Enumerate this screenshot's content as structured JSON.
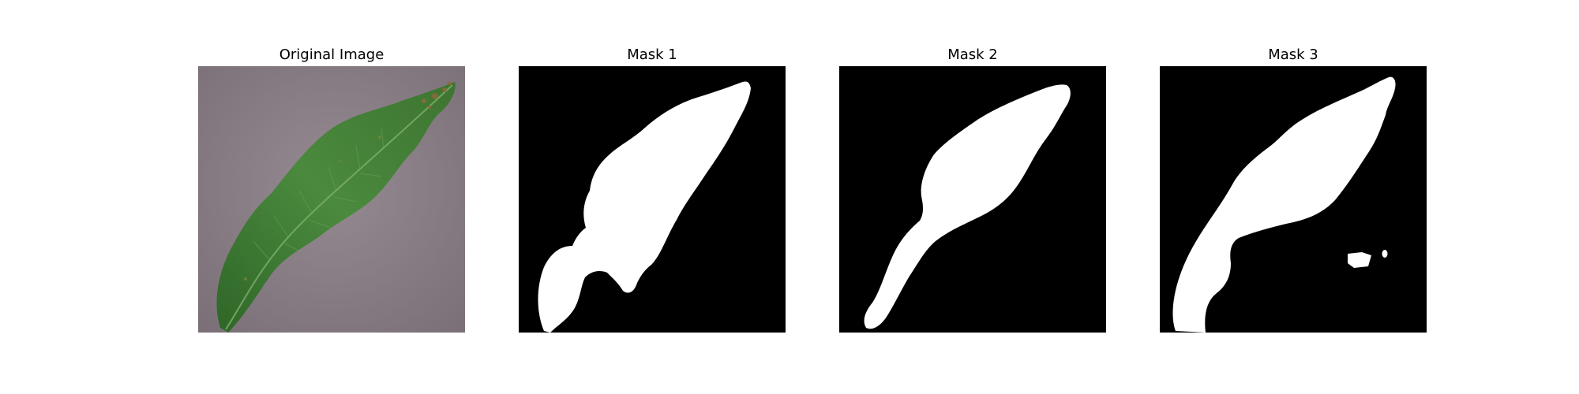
{
  "figure": {
    "panels": [
      {
        "title": "Original Image",
        "kind": "photo",
        "subject": "leaf"
      },
      {
        "title": "Mask 1",
        "kind": "binary-mask"
      },
      {
        "title": "Mask 2",
        "kind": "binary-mask"
      },
      {
        "title": "Mask 3",
        "kind": "binary-mask"
      }
    ],
    "colors": {
      "background": "#ffffff",
      "mask_bg": "#000000",
      "mask_fg": "#ffffff",
      "leaf": "#3f7a35",
      "surface": "#8c8189"
    }
  }
}
